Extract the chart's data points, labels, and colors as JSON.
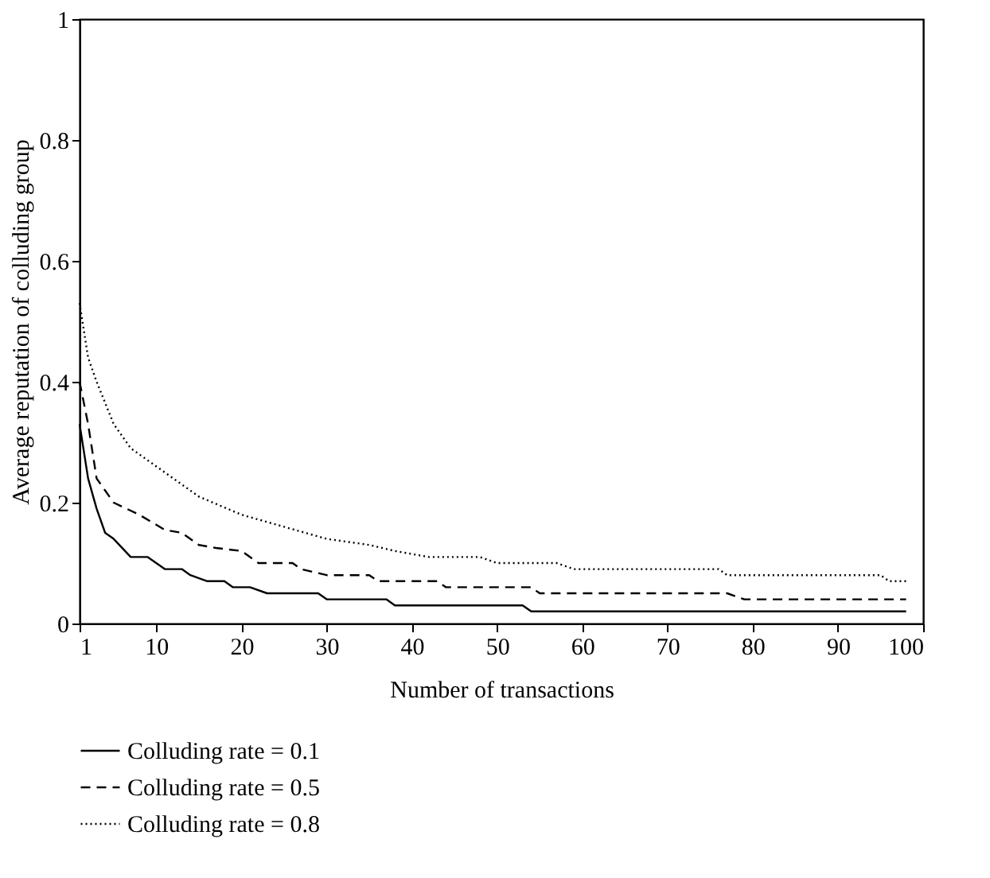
{
  "chart_data": {
    "type": "line",
    "xlabel": "Number of transactions",
    "ylabel": "Average reputation of colluding group",
    "xlim": [
      1,
      100
    ],
    "xticks": [
      1,
      10,
      20,
      30,
      40,
      50,
      60,
      70,
      80,
      90,
      100
    ],
    "ylim": [
      0,
      1
    ],
    "yticks": [
      0,
      0.2,
      0.4,
      0.6,
      0.8,
      1
    ],
    "grid": false,
    "legend": "bottom",
    "marker": "none",
    "series": [
      {
        "name": "Colluding rate = 0.1",
        "color": "#000000",
        "line_style": "solid",
        "x": [
          1,
          2,
          3,
          4,
          5,
          7,
          9,
          11,
          13,
          14,
          16,
          18,
          19,
          21,
          23,
          29,
          30,
          37,
          38,
          53,
          54,
          98
        ],
        "values": [
          0.33,
          0.24,
          0.19,
          0.15,
          0.14,
          0.11,
          0.11,
          0.09,
          0.09,
          0.08,
          0.07,
          0.07,
          0.06,
          0.06,
          0.05,
          0.05,
          0.04,
          0.04,
          0.03,
          0.03,
          0.02,
          0.02
        ]
      },
      {
        "name": "Colluding rate = 0.5",
        "color": "#000000",
        "line_style": "dashed",
        "x": [
          1,
          2,
          3,
          4,
          5,
          8,
          11,
          13,
          15,
          17,
          20,
          22,
          26,
          27,
          30,
          35,
          36,
          43,
          44,
          54,
          55,
          77,
          79,
          98
        ],
        "values": [
          0.4,
          0.33,
          0.24,
          0.22,
          0.2,
          0.18,
          0.155,
          0.15,
          0.13,
          0.125,
          0.12,
          0.1,
          0.1,
          0.09,
          0.08,
          0.08,
          0.07,
          0.07,
          0.06,
          0.06,
          0.05,
          0.05,
          0.04,
          0.04
        ]
      },
      {
        "name": "Colluding rate = 0.8",
        "color": "#000000",
        "line_style": "dotted",
        "x": [
          1,
          2,
          3,
          5,
          7,
          10,
          15,
          20,
          25,
          30,
          35,
          38,
          42,
          48,
          50,
          57,
          59,
          76,
          77,
          95,
          96,
          98
        ],
        "values": [
          0.53,
          0.44,
          0.4,
          0.33,
          0.29,
          0.26,
          0.21,
          0.18,
          0.16,
          0.14,
          0.13,
          0.12,
          0.11,
          0.11,
          0.1,
          0.1,
          0.09,
          0.09,
          0.08,
          0.08,
          0.07,
          0.07
        ]
      }
    ]
  }
}
